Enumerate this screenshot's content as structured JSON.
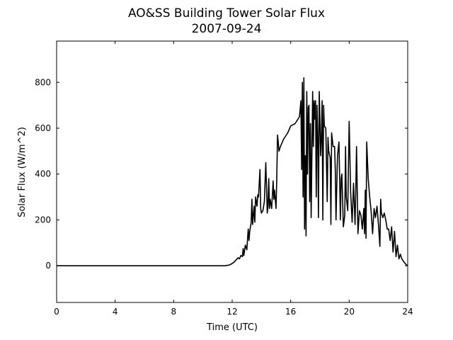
{
  "chart_data": {
    "type": "line",
    "title": "AO&SS Building Tower Solar Flux",
    "subtitle": "2007-09-24",
    "xlabel": "Time (UTC)",
    "ylabel": "Solar Flux (W/m^2)",
    "xlim": [
      0,
      24
    ],
    "ylim": [
      -160,
      980
    ],
    "xticks": [
      0,
      4,
      8,
      12,
      16,
      20,
      24
    ],
    "xtick_labels": [
      "0",
      "4",
      "8",
      "12",
      "16",
      "20",
      "24"
    ],
    "yticks": [
      0,
      200,
      400,
      600,
      800
    ],
    "ytick_labels": [
      "0",
      "200",
      "400",
      "600",
      "800"
    ],
    "grid": false,
    "legend": "none",
    "line_color": "#000000",
    "series": [
      {
        "x": [
          0,
          11.5,
          11.8,
          12.0,
          12.2,
          12.4,
          12.5,
          12.6,
          12.7,
          12.75,
          12.8,
          12.9,
          13.0,
          13.1,
          13.15,
          13.2,
          13.3,
          13.35,
          13.4,
          13.5,
          13.55,
          13.6,
          13.7,
          13.75,
          13.8,
          13.9,
          13.95,
          14.0,
          14.1,
          14.2,
          14.3,
          14.4,
          14.45,
          14.5,
          14.55,
          14.6,
          14.7,
          14.8,
          14.85,
          14.9,
          15.0,
          15.05,
          15.1,
          15.15,
          15.2,
          15.3,
          15.5,
          15.8,
          16.0,
          16.3,
          16.6,
          16.7,
          16.75,
          16.8,
          16.85,
          16.9,
          16.95,
          17.0,
          17.05,
          17.1,
          17.15,
          17.2,
          17.25,
          17.3,
          17.35,
          17.4,
          17.5,
          17.55,
          17.6,
          17.65,
          17.7,
          17.75,
          17.8,
          17.85,
          17.9,
          17.95,
          18.0,
          18.05,
          18.1,
          18.15,
          18.2,
          18.25,
          18.3,
          18.4,
          18.5,
          18.55,
          18.6,
          18.7,
          18.75,
          18.8,
          18.9,
          19.0,
          19.05,
          19.1,
          19.2,
          19.3,
          19.4,
          19.45,
          19.5,
          19.6,
          19.7,
          19.75,
          19.8,
          19.9,
          20.0,
          20.1,
          20.2,
          20.3,
          20.4,
          20.45,
          20.5,
          20.6,
          20.7,
          20.8,
          20.9,
          21.0,
          21.05,
          21.1,
          21.15,
          21.2,
          21.3,
          21.4,
          21.5,
          21.6,
          21.7,
          21.8,
          21.9,
          22.0,
          22.1,
          22.15,
          22.2,
          22.3,
          22.4,
          22.5,
          22.6,
          22.7,
          22.8,
          22.9,
          23.0,
          23.1,
          23.2,
          23.3,
          23.4,
          23.5,
          23.6,
          23.7,
          23.8,
          23.9,
          24.0
        ],
        "y": [
          0,
          0,
          3,
          10,
          20,
          35,
          30,
          45,
          40,
          75,
          45,
          90,
          70,
          160,
          110,
          150,
          190,
          290,
          180,
          260,
          190,
          300,
          260,
          310,
          300,
          420,
          250,
          230,
          240,
          280,
          450,
          230,
          260,
          380,
          250,
          290,
          250,
          370,
          290,
          330,
          250,
          380,
          570,
          540,
          500,
          520,
          550,
          580,
          610,
          620,
          650,
          720,
          420,
          800,
          300,
          820,
          160,
          480,
          130,
          760,
          400,
          690,
          700,
          280,
          620,
          210,
          760,
          520,
          720,
          640,
          720,
          300,
          700,
          560,
          210,
          760,
          640,
          480,
          560,
          720,
          200,
          700,
          610,
          600,
          280,
          560,
          500,
          470,
          180,
          580,
          520,
          520,
          420,
          200,
          480,
          540,
          200,
          380,
          400,
          170,
          220,
          520,
          300,
          240,
          630,
          320,
          190,
          360,
          180,
          320,
          520,
          140,
          240,
          220,
          160,
          250,
          140,
          330,
          120,
          540,
          380,
          300,
          240,
          140,
          250,
          210,
          260,
          180,
          85,
          290,
          230,
          210,
          230,
          200,
          160,
          160,
          110,
          170,
          60,
          150,
          40,
          90,
          30,
          50,
          30,
          20,
          12,
          5,
          0
        ]
      }
    ]
  }
}
